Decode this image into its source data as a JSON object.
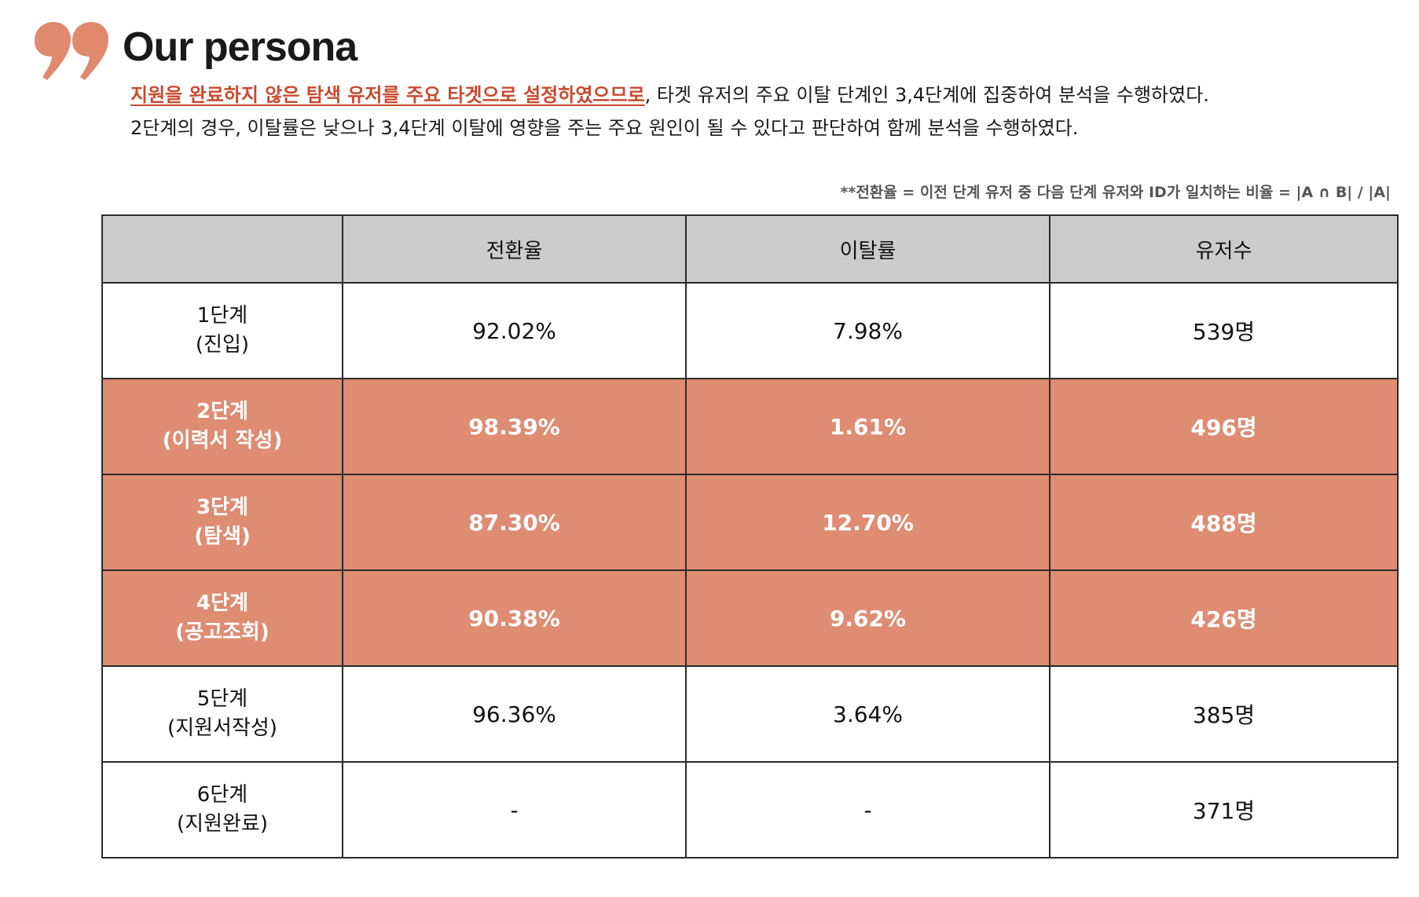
{
  "header": {
    "title": "Our persona",
    "accent_color": "#e0896d"
  },
  "description": {
    "line1_highlight": "지원을 완료하지 않은 탐색 유저를 주요 타겟으로 설정하였으므로",
    "line1_rest": ", 타겟 유저의 주요 이탈 단계인 3,4단계에 집중하여 분석을 수행하였다.",
    "line2": "2단계의 경우, 이탈률은 낮으나 3,4단계 이탈에 영향을 주는 주요 원인이 될 수 있다고 판단하여 함께 분석을 수행하였다.",
    "highlight_color": "#c9492e"
  },
  "footnote": "**전환율 = 이전 단계 유저 중 다음 단계 유저와 ID가 일치하는 비율 = |A ∩ B| / |A|",
  "table": {
    "columns": [
      "",
      "전환율",
      "이탈률",
      "유저수"
    ],
    "header_color": "#cccccc",
    "highlight_color": "#de8c72",
    "rows": [
      {
        "stage": "1단계",
        "name": "(진입)",
        "conversion": "92.02%",
        "churn": "7.98%",
        "users": "539명",
        "highlight": false
      },
      {
        "stage": "2단계",
        "name": "(이력서 작성)",
        "conversion": "98.39%",
        "churn": "1.61%",
        "users": "496명",
        "highlight": true
      },
      {
        "stage": "3단계",
        "name": "(탐색)",
        "conversion": "87.30%",
        "churn": "12.70%",
        "users": "488명",
        "highlight": true
      },
      {
        "stage": "4단계",
        "name": "(공고조회)",
        "conversion": "90.38%",
        "churn": "9.62%",
        "users": "426명",
        "highlight": true
      },
      {
        "stage": "5단계",
        "name": "(지원서작성)",
        "conversion": "96.36%",
        "churn": "3.64%",
        "users": "385명",
        "highlight": false
      },
      {
        "stage": "6단계",
        "name": "(지원완료)",
        "conversion": "-",
        "churn": "-",
        "users": "371명",
        "highlight": false
      }
    ]
  }
}
